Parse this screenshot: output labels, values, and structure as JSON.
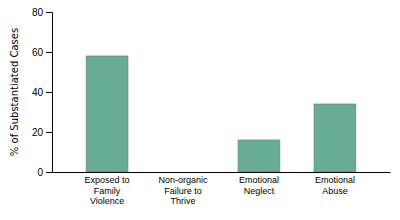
{
  "chart_data": {
    "type": "bar",
    "categories": [
      "Exposed to\nFamily\nViolence",
      "Non-organic\nFailure to\nThrive",
      "Emotional\nNeglect",
      "Emotional\nAbuse"
    ],
    "values": [
      58,
      0,
      16,
      34
    ],
    "color": "#6aab96",
    "ylabel": "% of Substantiated Cases",
    "ylim": [
      0,
      80
    ],
    "yticks": [
      0,
      20,
      40,
      60,
      80
    ],
    "grid": false
  }
}
